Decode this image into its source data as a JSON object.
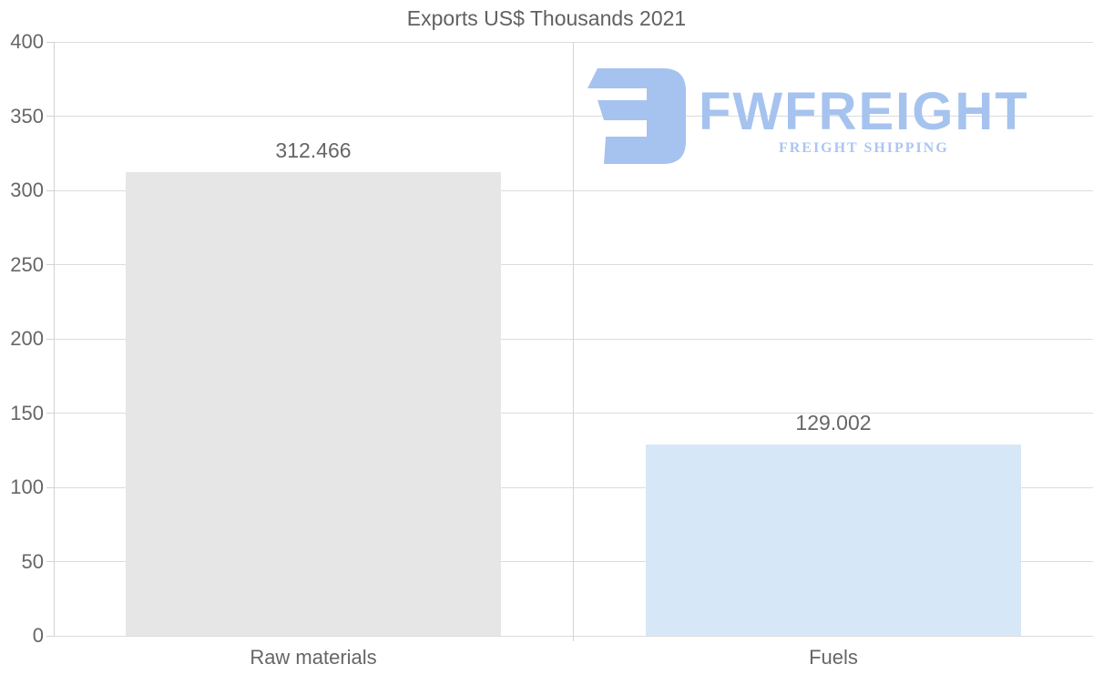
{
  "logo": {
    "name": "FWFREIGHT",
    "tagline": "FREIGHT SHIPPING",
    "color": "#a6c3ef",
    "tagline_color": "#abc6f0",
    "icon": "reversed-e-freight-mark"
  },
  "chart_data": {
    "type": "bar",
    "title": "Exports US$ Thousands 2021",
    "categories": [
      "Raw materials",
      "Fuels"
    ],
    "values": [
      312.466,
      129.002
    ],
    "value_labels": [
      "312.466",
      "129.002"
    ],
    "bar_colors": [
      "#e6e6e6",
      "#d6e8f8"
    ],
    "xlabel": "",
    "ylabel": "",
    "ylim": [
      0,
      400
    ],
    "yticks": [
      0,
      50,
      100,
      150,
      200,
      250,
      300,
      350,
      400
    ],
    "grid": true,
    "legend": "none",
    "text_color": "#666666",
    "grid_color": "#dcdcdc"
  }
}
